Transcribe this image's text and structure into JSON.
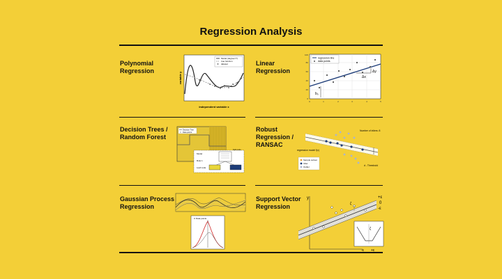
{
  "page": {
    "title": "Regression Analysis",
    "background": "#F3CF37",
    "accent": "#111111"
  },
  "sections": [
    {
      "id": "polynomial",
      "label": "Polynomial\nRegression",
      "plot": {
        "legend": [
          "Model (degree=?)",
          "true function",
          "dataset"
        ],
        "xlabel": "independent variable x",
        "ylabel": "variable y"
      }
    },
    {
      "id": "linear",
      "label": "Linear\nRegression",
      "plot": {
        "legend": [
          "regression line",
          "data points"
        ],
        "annotations": [
          "Δy",
          "Δx",
          "b₀"
        ],
        "x_ticks": [
          "0",
          "1",
          "2",
          "3",
          "4",
          "5"
        ],
        "y_ticks": [
          "0",
          "20",
          "40",
          "60",
          "80",
          "100"
        ]
      }
    },
    {
      "id": "trees",
      "label": "Decision Trees /\nRandom Forest",
      "plot": {
        "legend": [
          "Decision Tree",
          "Data points"
        ],
        "node_labels": [
          "Model",
          "Rule 1",
          "Leaf node",
          "Split node"
        ]
      }
    },
    {
      "id": "robust",
      "label": "Robust\nRegression /\nRANSAC",
      "plot": {
        "annotations": [
          "Number of inliers: 8",
          "regression model f(x)",
          "d - Threshold"
        ],
        "legend": [
          "Sample subset",
          "Inlier",
          "Outlier"
        ]
      }
    },
    {
      "id": "gaussian",
      "label": "Gaussian Process\nRegression",
      "plot": {
        "legend": [
          "Data points"
        ]
      }
    },
    {
      "id": "svr",
      "label": "Support Vector\nRegression",
      "plot": {
        "axis_label": "y",
        "margin_labels": [
          "+ε",
          "0",
          "-ε"
        ],
        "inset_labels": [
          "ζ",
          "-ε",
          "+ε"
        ],
        "slack_label": "ζ"
      }
    }
  ]
}
